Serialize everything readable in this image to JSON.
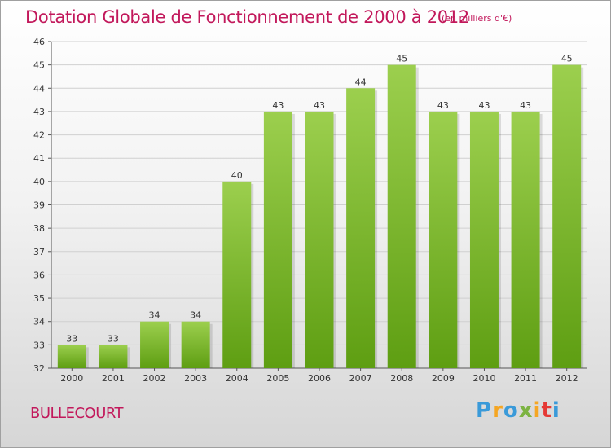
{
  "header": {
    "title": "Dotation Globale de Fonctionnement de 2000 à 2012",
    "subtitle": "(en milliers d'€)"
  },
  "footer": {
    "commune": "BULLECOURT",
    "logo": "Proxiti"
  },
  "colors": {
    "accent": "#c2185b",
    "bar_top": "#9ccf4e",
    "bar_bottom": "#5e9e12"
  },
  "chart_data": {
    "type": "bar",
    "title": "Dotation Globale de Fonctionnement de 2000 à 2012",
    "subtitle": "(en milliers d'€)",
    "categories": [
      "2000",
      "2001",
      "2002",
      "2003",
      "2004",
      "2005",
      "2006",
      "2007",
      "2008",
      "2009",
      "2010",
      "2011",
      "2012"
    ],
    "values": [
      33,
      33,
      34,
      34,
      40,
      43,
      43,
      44,
      45,
      43,
      43,
      43,
      45
    ],
    "ylim": [
      32,
      46
    ],
    "yticks": [
      32,
      33,
      34,
      35,
      36,
      37,
      38,
      39,
      40,
      41,
      42,
      43,
      44,
      45,
      46
    ],
    "grid": true,
    "data_labels": true
  }
}
